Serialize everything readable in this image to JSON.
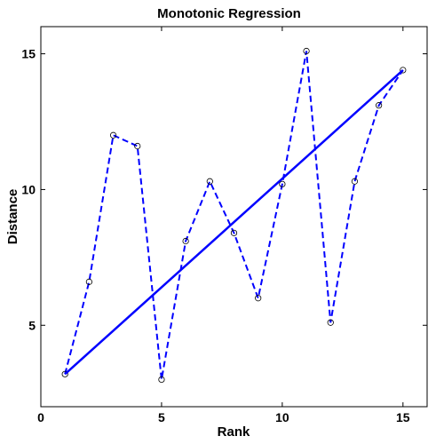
{
  "chart_data": {
    "type": "line",
    "title": "Monotonic Regression",
    "xlabel": "Rank",
    "ylabel": "Distance",
    "xlim": [
      0,
      16
    ],
    "ylim": [
      2,
      16
    ],
    "xticks": [
      0,
      5,
      10,
      15
    ],
    "yticks": [
      5,
      10,
      15
    ],
    "grid": false,
    "series": [
      {
        "style": "dashed-with-circle-markers",
        "color": "#0000ff",
        "x": [
          1,
          2,
          3,
          4,
          5,
          6,
          7,
          8,
          9,
          10,
          11,
          12,
          13,
          14,
          15
        ],
        "y": [
          3.2,
          6.6,
          12.0,
          11.6,
          3.0,
          8.1,
          10.3,
          8.4,
          6.0,
          10.2,
          15.1,
          5.1,
          10.3,
          13.1,
          14.4
        ]
      },
      {
        "style": "solid",
        "color": "#0000ff",
        "x": [
          1,
          15
        ],
        "y": [
          3.2,
          14.4
        ]
      }
    ]
  }
}
